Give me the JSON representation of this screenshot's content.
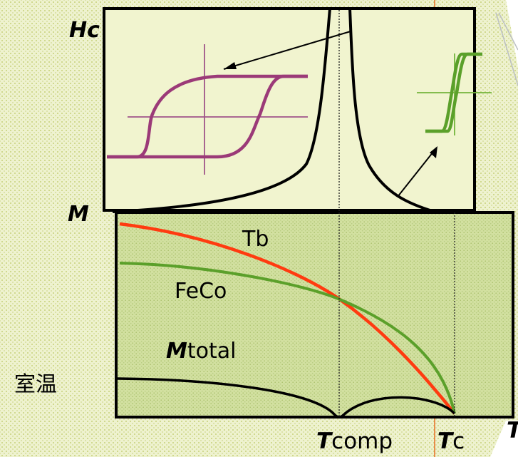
{
  "labels": {
    "hc_axis": "Hc",
    "m_axis": "M",
    "tb": "Tb",
    "feco": "FeCo",
    "mtotal_prefix": "M",
    "mtotal_suffix": "total",
    "room_temp": "室温",
    "tcomp_prefix": "T",
    "tcomp_suffix": "comp",
    "tc_prefix": "T",
    "tc_suffix": "c",
    "t_axis": "T"
  },
  "colors": {
    "tb_curve": "#ff3b10",
    "feco_curve": "#5ba02a",
    "mtotal_curve": "#000000",
    "hc_curve": "#000000",
    "wide_loop": "#9b3a78",
    "narrow_loop": "#5ba02a",
    "upper_panel_bg": "#f1f4cf",
    "lower_panel_bg": "#d4e2a2",
    "tc_guide_line": "#e8762e"
  },
  "icons": {
    "wide_loop": "wide-hysteresis-loop-icon",
    "narrow_loop": "narrow-hysteresis-loop-icon"
  }
}
